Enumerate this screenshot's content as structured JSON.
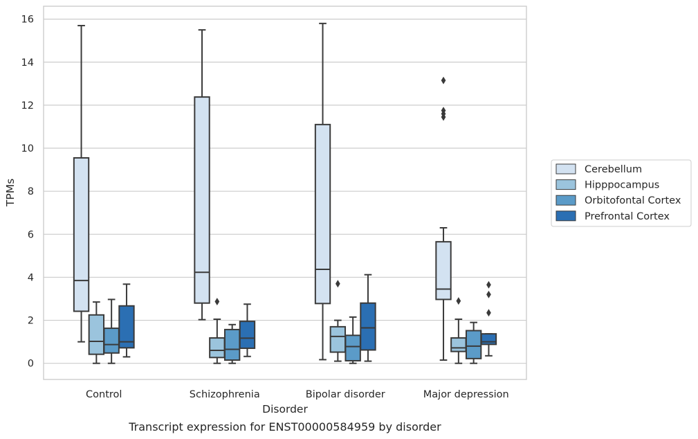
{
  "chart_data": {
    "type": "boxplot",
    "caption": "Transcript expression for ENST00000584959 by disorder",
    "xlabel": "Disorder",
    "ylabel": "TPMs",
    "ylim": [
      -0.75,
      16.6
    ],
    "yticks": [
      0,
      2,
      4,
      6,
      8,
      10,
      12,
      14,
      16
    ],
    "ytick_labels": [
      "0",
      "2",
      "4",
      "6",
      "8",
      "10",
      "12",
      "14",
      "16"
    ],
    "grid": "horizontal",
    "legend_position": "right-outside",
    "categories": [
      "Control",
      "Schizophrenia",
      "Bipolar disorder",
      "Major depression"
    ],
    "series": [
      {
        "name": "Cerebellum",
        "color": "#d3e2f1",
        "boxes": [
          {
            "whisker_low": 1.0,
            "q1": 2.42,
            "median": 3.85,
            "q3": 9.55,
            "whisker_high": 15.7,
            "outliers": []
          },
          {
            "whisker_low": 2.03,
            "q1": 2.8,
            "median": 4.23,
            "q3": 12.38,
            "whisker_high": 15.5,
            "outliers": []
          },
          {
            "whisker_low": 0.17,
            "q1": 2.78,
            "median": 4.37,
            "q3": 11.1,
            "whisker_high": 15.8,
            "outliers": []
          },
          {
            "whisker_low": 0.15,
            "q1": 2.97,
            "median": 3.45,
            "q3": 5.65,
            "whisker_high": 6.3,
            "outliers": [
              13.15,
              11.75,
              11.6,
              11.45
            ]
          }
        ]
      },
      {
        "name": "Hipppocampus",
        "color": "#9bc4dd",
        "boxes": [
          {
            "whisker_low": 0.0,
            "q1": 0.42,
            "median": 1.02,
            "q3": 2.25,
            "whisker_high": 2.85,
            "outliers": []
          },
          {
            "whisker_low": 0.0,
            "q1": 0.27,
            "median": 0.6,
            "q3": 1.18,
            "whisker_high": 2.05,
            "outliers": [
              2.87
            ]
          },
          {
            "whisker_low": 0.1,
            "q1": 0.52,
            "median": 1.25,
            "q3": 1.7,
            "whisker_high": 2.0,
            "outliers": [
              3.7
            ]
          },
          {
            "whisker_low": 0.0,
            "q1": 0.55,
            "median": 0.72,
            "q3": 1.18,
            "whisker_high": 2.05,
            "outliers": [
              2.9
            ]
          }
        ]
      },
      {
        "name": "Orbitofontal Cortex",
        "color": "#5b9bc8",
        "boxes": [
          {
            "whisker_low": 0.0,
            "q1": 0.48,
            "median": 0.87,
            "q3": 1.63,
            "whisker_high": 2.97,
            "outliers": []
          },
          {
            "whisker_low": 0.0,
            "q1": 0.15,
            "median": 0.65,
            "q3": 1.57,
            "whisker_high": 1.8,
            "outliers": []
          },
          {
            "whisker_low": 0.0,
            "q1": 0.12,
            "median": 0.78,
            "q3": 1.3,
            "whisker_high": 2.15,
            "outliers": []
          },
          {
            "whisker_low": 0.0,
            "q1": 0.22,
            "median": 0.8,
            "q3": 1.52,
            "whisker_high": 1.9,
            "outliers": []
          }
        ]
      },
      {
        "name": "Prefrontal Cortex",
        "color": "#2b6fb3",
        "boxes": [
          {
            "whisker_low": 0.3,
            "q1": 0.72,
            "median": 1.0,
            "q3": 2.67,
            "whisker_high": 3.68,
            "outliers": []
          },
          {
            "whisker_low": 0.32,
            "q1": 0.7,
            "median": 1.17,
            "q3": 1.95,
            "whisker_high": 2.75,
            "outliers": []
          },
          {
            "whisker_low": 0.1,
            "q1": 0.62,
            "median": 1.65,
            "q3": 2.8,
            "whisker_high": 4.12,
            "outliers": []
          },
          {
            "whisker_low": 0.35,
            "q1": 0.88,
            "median": 1.0,
            "q3": 1.37,
            "whisker_high": 1.37,
            "outliers": [
              3.65,
              3.2,
              2.35
            ]
          }
        ]
      }
    ]
  }
}
